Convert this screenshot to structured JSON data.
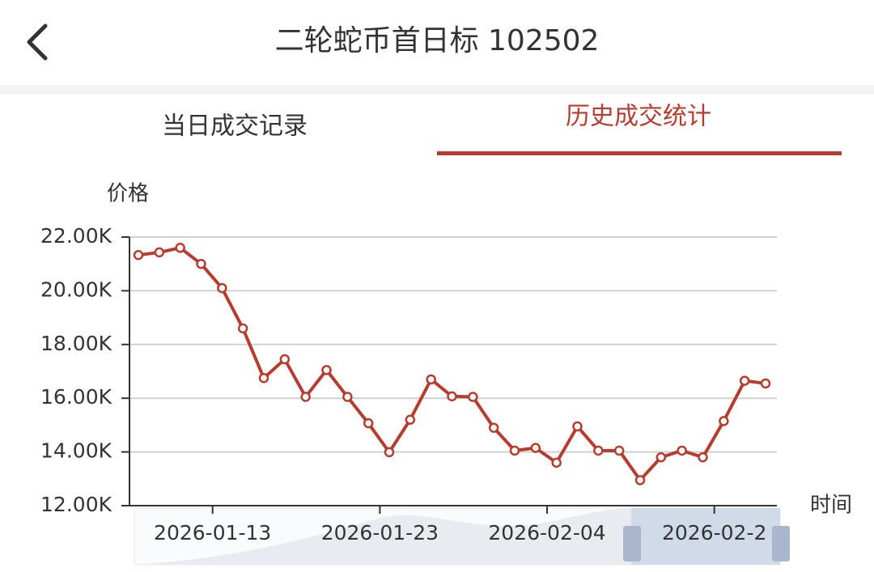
{
  "header": {
    "title": "二轮蛇币首日标 102502"
  },
  "tabs": [
    "当日成交记录",
    "历史成交统计"
  ],
  "chart_data": {
    "type": "line",
    "ylabel": "价格",
    "xlabel": "时间",
    "categories": [
      null,
      null,
      null,
      null,
      "2026-01-13",
      null,
      null,
      null,
      null,
      null,
      null,
      null,
      "2026-01-23",
      null,
      null,
      null,
      null,
      null,
      null,
      null,
      "2026-02-04",
      null,
      null,
      null,
      null,
      null,
      null,
      null,
      "2026-02-2",
      null,
      null
    ],
    "series": [
      {
        "name": "价格",
        "color": "#b83c2e",
        "values": [
          21.33,
          21.43,
          21.6,
          21.0,
          20.1,
          18.6,
          16.75,
          17.45,
          16.05,
          17.05,
          16.05,
          15.07,
          13.99,
          15.2,
          16.7,
          16.07,
          16.05,
          14.9,
          14.05,
          14.15,
          13.6,
          14.95,
          14.05,
          14.05,
          12.95,
          13.8,
          14.05,
          13.8,
          15.15,
          16.65,
          16.55
        ]
      }
    ],
    "ylim": [
      12,
      22
    ],
    "yticks": [
      {
        "value": 12,
        "label": "12.00K"
      },
      {
        "value": 14,
        "label": "14.00K"
      },
      {
        "value": 16,
        "label": "16.00K"
      },
      {
        "value": 18,
        "label": "18.00K"
      },
      {
        "value": 20,
        "label": "20.00K"
      },
      {
        "value": 22,
        "label": "22.00K"
      }
    ],
    "grid": true
  }
}
